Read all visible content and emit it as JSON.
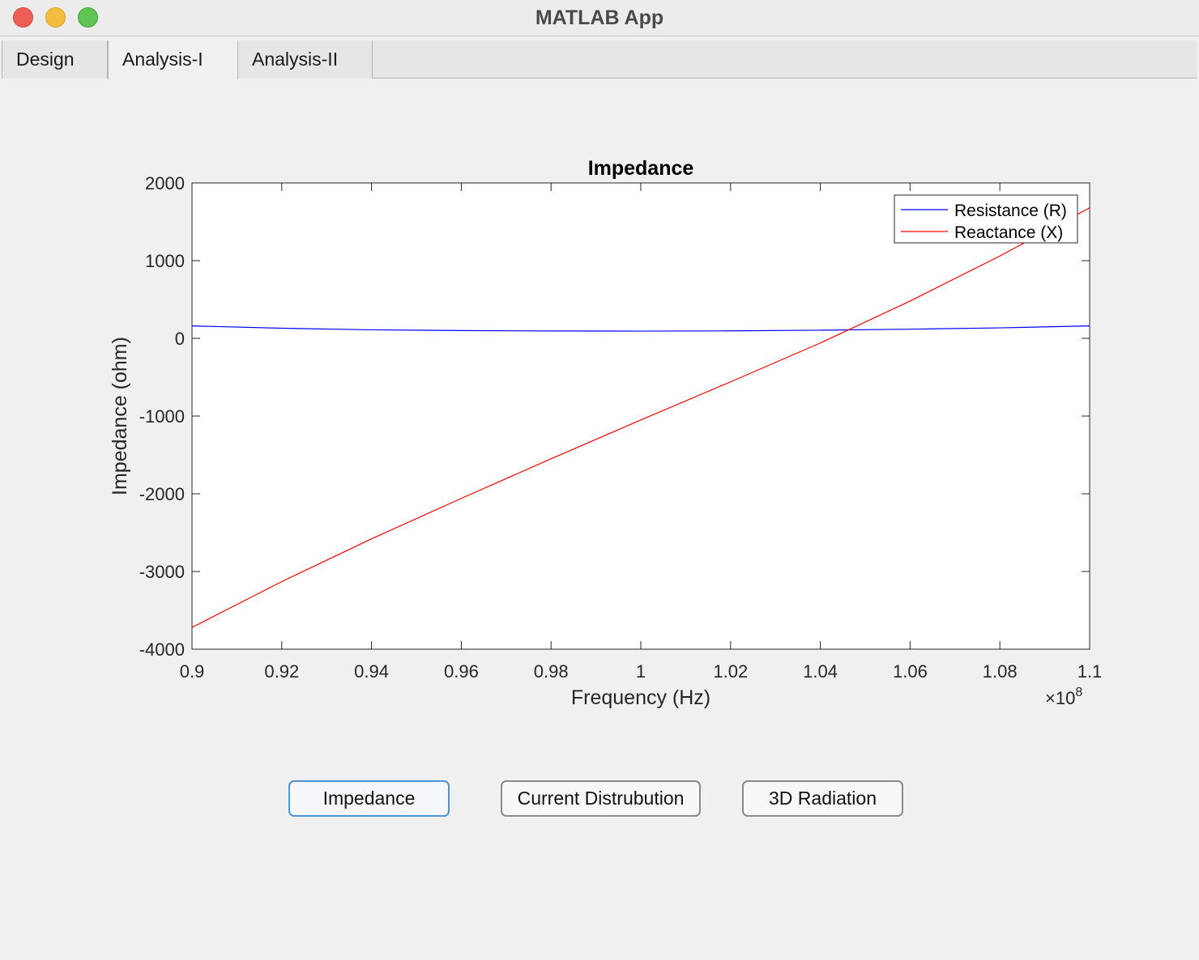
{
  "window": {
    "title": "MATLAB App"
  },
  "tabs": [
    {
      "label": "Design",
      "active": false
    },
    {
      "label": "Analysis-I",
      "active": true
    },
    {
      "label": "Analysis-II",
      "active": false
    }
  ],
  "buttons": {
    "impedance": "Impedance",
    "current": "Current Distrubution",
    "radiation": "3D Radiation"
  },
  "chart_data": {
    "type": "line",
    "title": "Impedance",
    "xlabel": "Frequency (Hz)",
    "ylabel": "Impedance (ohm)",
    "x_exponent_label": "×10",
    "x_exponent_power": "8",
    "xlim": [
      0.9,
      1.1
    ],
    "ylim": [
      -4000,
      2000
    ],
    "x_ticks": [
      "0.9",
      "0.92",
      "0.94",
      "0.96",
      "0.98",
      "1",
      "1.02",
      "1.04",
      "1.06",
      "1.08",
      "1.1"
    ],
    "y_ticks": [
      "2000",
      "1000",
      "0",
      "-1000",
      "-2000",
      "-3000",
      "-4000"
    ],
    "x": [
      0.9,
      0.92,
      0.94,
      0.96,
      0.98,
      1.0,
      1.02,
      1.04,
      1.06,
      1.08,
      1.1
    ],
    "series": [
      {
        "name": "Resistance (R)",
        "color": "#0000ff",
        "values": [
          160,
          130,
          110,
          100,
          95,
          93,
          96,
          105,
          118,
          135,
          160
        ]
      },
      {
        "name": "Reactance (X)",
        "color": "#ff0000",
        "values": [
          -3720,
          -3130,
          -2580,
          -2060,
          -1550,
          -1050,
          -560,
          -60,
          480,
          1060,
          1680
        ]
      }
    ],
    "legend_position": "top-right",
    "grid": false
  }
}
